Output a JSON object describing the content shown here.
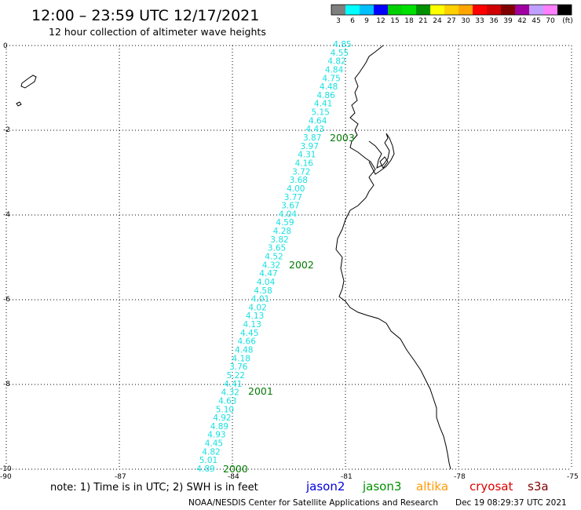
{
  "header": {
    "title": "12:00 – 23:59 UTC 12/17/2021",
    "subtitle": "12 hour collection of altimeter wave heights"
  },
  "legend": {
    "colors": [
      "#7f7f7f",
      "#00ffff",
      "#00bfff",
      "#0000ff",
      "#00d000",
      "#00e000",
      "#009000",
      "#ffff00",
      "#ffd000",
      "#ffa500",
      "#ff0000",
      "#d00000",
      "#800000",
      "#a000a0",
      "#c0a0ff",
      "#ff80ff",
      "#000000"
    ],
    "labels": [
      "3",
      "6",
      "9",
      "12",
      "15",
      "18",
      "21",
      "24",
      "27",
      "30",
      "33",
      "36",
      "39",
      "42",
      "45",
      "70",
      "(ft)"
    ]
  },
  "axes": {
    "lat_labels": [
      "0",
      "-2",
      "-4",
      "-6",
      "-8",
      "-10"
    ],
    "lon_labels": [
      "-90",
      "-87",
      "-84",
      "-81",
      "-78",
      "-75"
    ]
  },
  "track": {
    "color": "#19e0e0",
    "values": [
      "4.85",
      "4.55",
      "4.82",
      "4.84",
      "4.75",
      "4.48",
      "4.86",
      "4.41",
      "5.15",
      "4.64",
      "4.43",
      "3.87",
      "3.97",
      "4.31",
      "4.16",
      "3.72",
      "3.68",
      "4.00",
      "3.77",
      "3.67",
      "4.04",
      "4.59",
      "4.28",
      "3.82",
      "3.65",
      "4.52",
      "4.32",
      "4.47",
      "4.04",
      "4.58",
      "4.01",
      "4.02",
      "4.13",
      "4.13",
      "4.45",
      "4.66",
      "4.48",
      "4.18",
      "3.76",
      "5.22",
      "4.41",
      "4.32",
      "4.63",
      "5.10",
      "4.92",
      "4.89",
      "4.93",
      "4.45",
      "4.82",
      "5.01",
      "4.89"
    ]
  },
  "pass_labels": [
    "2003",
    "2002",
    "2001",
    "2000"
  ],
  "note": "note: 1) Time is in UTC; 2) SWH is in feet",
  "satellites": [
    {
      "name": "jason2",
      "color": "#0000e0"
    },
    {
      "name": "jason3",
      "color": "#009000"
    },
    {
      "name": "altika",
      "color": "#ff9900"
    },
    {
      "name": "cryosat",
      "color": "#e00000"
    },
    {
      "name": "s3a",
      "color": "#800000"
    }
  ],
  "footer": {
    "agency": "NOAA/NESDIS Center for Satellite Applications and Research",
    "timestamp": "Dec 19 08:29:37 UTC 2021"
  }
}
